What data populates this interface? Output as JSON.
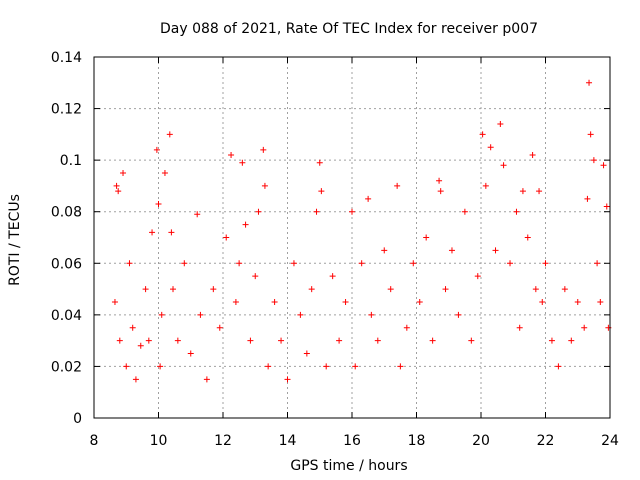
{
  "chart_data": {
    "type": "scatter",
    "title": "Day 088 of 2021, Rate Of TEC Index for receiver p007",
    "xlabel": "GPS time / hours",
    "ylabel": "ROTI / TECUs",
    "xlim": [
      8,
      24
    ],
    "ylim": [
      0,
      0.14
    ],
    "xticks": [
      8,
      10,
      12,
      14,
      16,
      18,
      20,
      22,
      24
    ],
    "xtick_labels": [
      "8",
      "10",
      "12",
      "14",
      "16",
      "18",
      "20",
      "22",
      "24"
    ],
    "yticks": [
      0,
      0.02,
      0.04,
      0.06,
      0.08,
      0.1,
      0.12,
      0.14
    ],
    "ytick_labels": [
      "0",
      "0.02",
      "0.04",
      "0.06",
      "0.08",
      "0.1",
      "0.12",
      "0.14"
    ],
    "grid": true,
    "marker": "+",
    "series": [
      {
        "name": "ROTI",
        "color": "#ff0000",
        "x": [
          8.65,
          8.7,
          8.75,
          8.8,
          8.9,
          9.0,
          9.1,
          9.2,
          9.3,
          9.45,
          9.6,
          9.7,
          9.8,
          9.95,
          10.0,
          10.05,
          10.1,
          10.2,
          10.35,
          10.4,
          10.45,
          10.6,
          10.8,
          11.0,
          11.2,
          11.3,
          11.5,
          11.7,
          11.9,
          12.1,
          12.25,
          12.4,
          12.5,
          12.6,
          12.7,
          12.85,
          13.0,
          13.1,
          13.25,
          13.3,
          13.4,
          13.6,
          13.8,
          14.0,
          14.2,
          14.4,
          14.6,
          14.75,
          14.9,
          15.0,
          15.05,
          15.2,
          15.4,
          15.6,
          15.8,
          16.0,
          16.1,
          16.3,
          16.5,
          16.6,
          16.8,
          17.0,
          17.2,
          17.4,
          17.5,
          17.7,
          17.9,
          18.1,
          18.3,
          18.5,
          18.7,
          18.75,
          18.9,
          19.1,
          19.3,
          19.5,
          19.7,
          19.9,
          20.05,
          20.15,
          20.3,
          20.45,
          20.6,
          20.7,
          20.9,
          21.1,
          21.2,
          21.3,
          21.45,
          21.6,
          21.7,
          21.8,
          21.9,
          22.0,
          22.2,
          22.4,
          22.6,
          22.8,
          23.0,
          23.2,
          23.3,
          23.35,
          23.4,
          23.5,
          23.6,
          23.7,
          23.8,
          23.9,
          23.95
        ],
        "y": [
          0.045,
          0.09,
          0.088,
          0.03,
          0.095,
          0.02,
          0.06,
          0.035,
          0.015,
          0.028,
          0.05,
          0.03,
          0.072,
          0.104,
          0.083,
          0.02,
          0.04,
          0.095,
          0.11,
          0.072,
          0.05,
          0.03,
          0.06,
          0.025,
          0.079,
          0.04,
          0.015,
          0.05,
          0.035,
          0.07,
          0.102,
          0.045,
          0.06,
          0.099,
          0.075,
          0.03,
          0.055,
          0.08,
          0.104,
          0.09,
          0.02,
          0.045,
          0.03,
          0.015,
          0.06,
          0.04,
          0.025,
          0.05,
          0.08,
          0.099,
          0.088,
          0.02,
          0.055,
          0.03,
          0.045,
          0.08,
          0.02,
          0.06,
          0.085,
          0.04,
          0.03,
          0.065,
          0.05,
          0.09,
          0.02,
          0.035,
          0.06,
          0.045,
          0.07,
          0.03,
          0.092,
          0.088,
          0.05,
          0.065,
          0.04,
          0.08,
          0.03,
          0.055,
          0.11,
          0.09,
          0.105,
          0.065,
          0.114,
          0.098,
          0.06,
          0.08,
          0.035,
          0.088,
          0.07,
          0.102,
          0.05,
          0.088,
          0.045,
          0.06,
          0.03,
          0.02,
          0.05,
          0.03,
          0.045,
          0.035,
          0.085,
          0.13,
          0.11,
          0.1,
          0.06,
          0.045,
          0.098,
          0.082,
          0.035
        ]
      }
    ]
  }
}
